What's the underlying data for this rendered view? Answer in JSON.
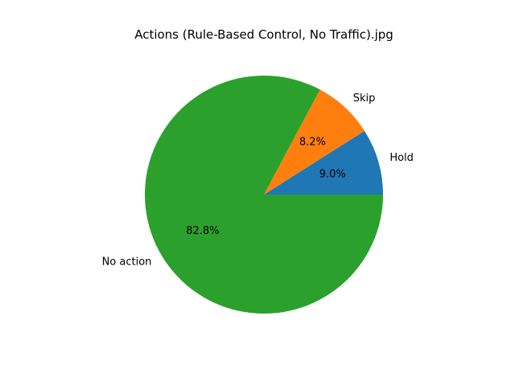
{
  "chart_data": {
    "type": "pie",
    "title": "Actions (Rule-Based Control, No Traffic).jpg",
    "slices": [
      {
        "label": "Hold",
        "value": 9.0,
        "pct_label": "9.0%",
        "color": "#1f77b4"
      },
      {
        "label": "Skip",
        "value": 8.2,
        "pct_label": "8.2%",
        "color": "#ff7f0e"
      },
      {
        "label": "No action",
        "value": 82.8,
        "pct_label": "82.8%",
        "color": "#2ca02c"
      }
    ],
    "start_angle_deg": 0,
    "direction": "counterclockwise",
    "legend": "none"
  }
}
